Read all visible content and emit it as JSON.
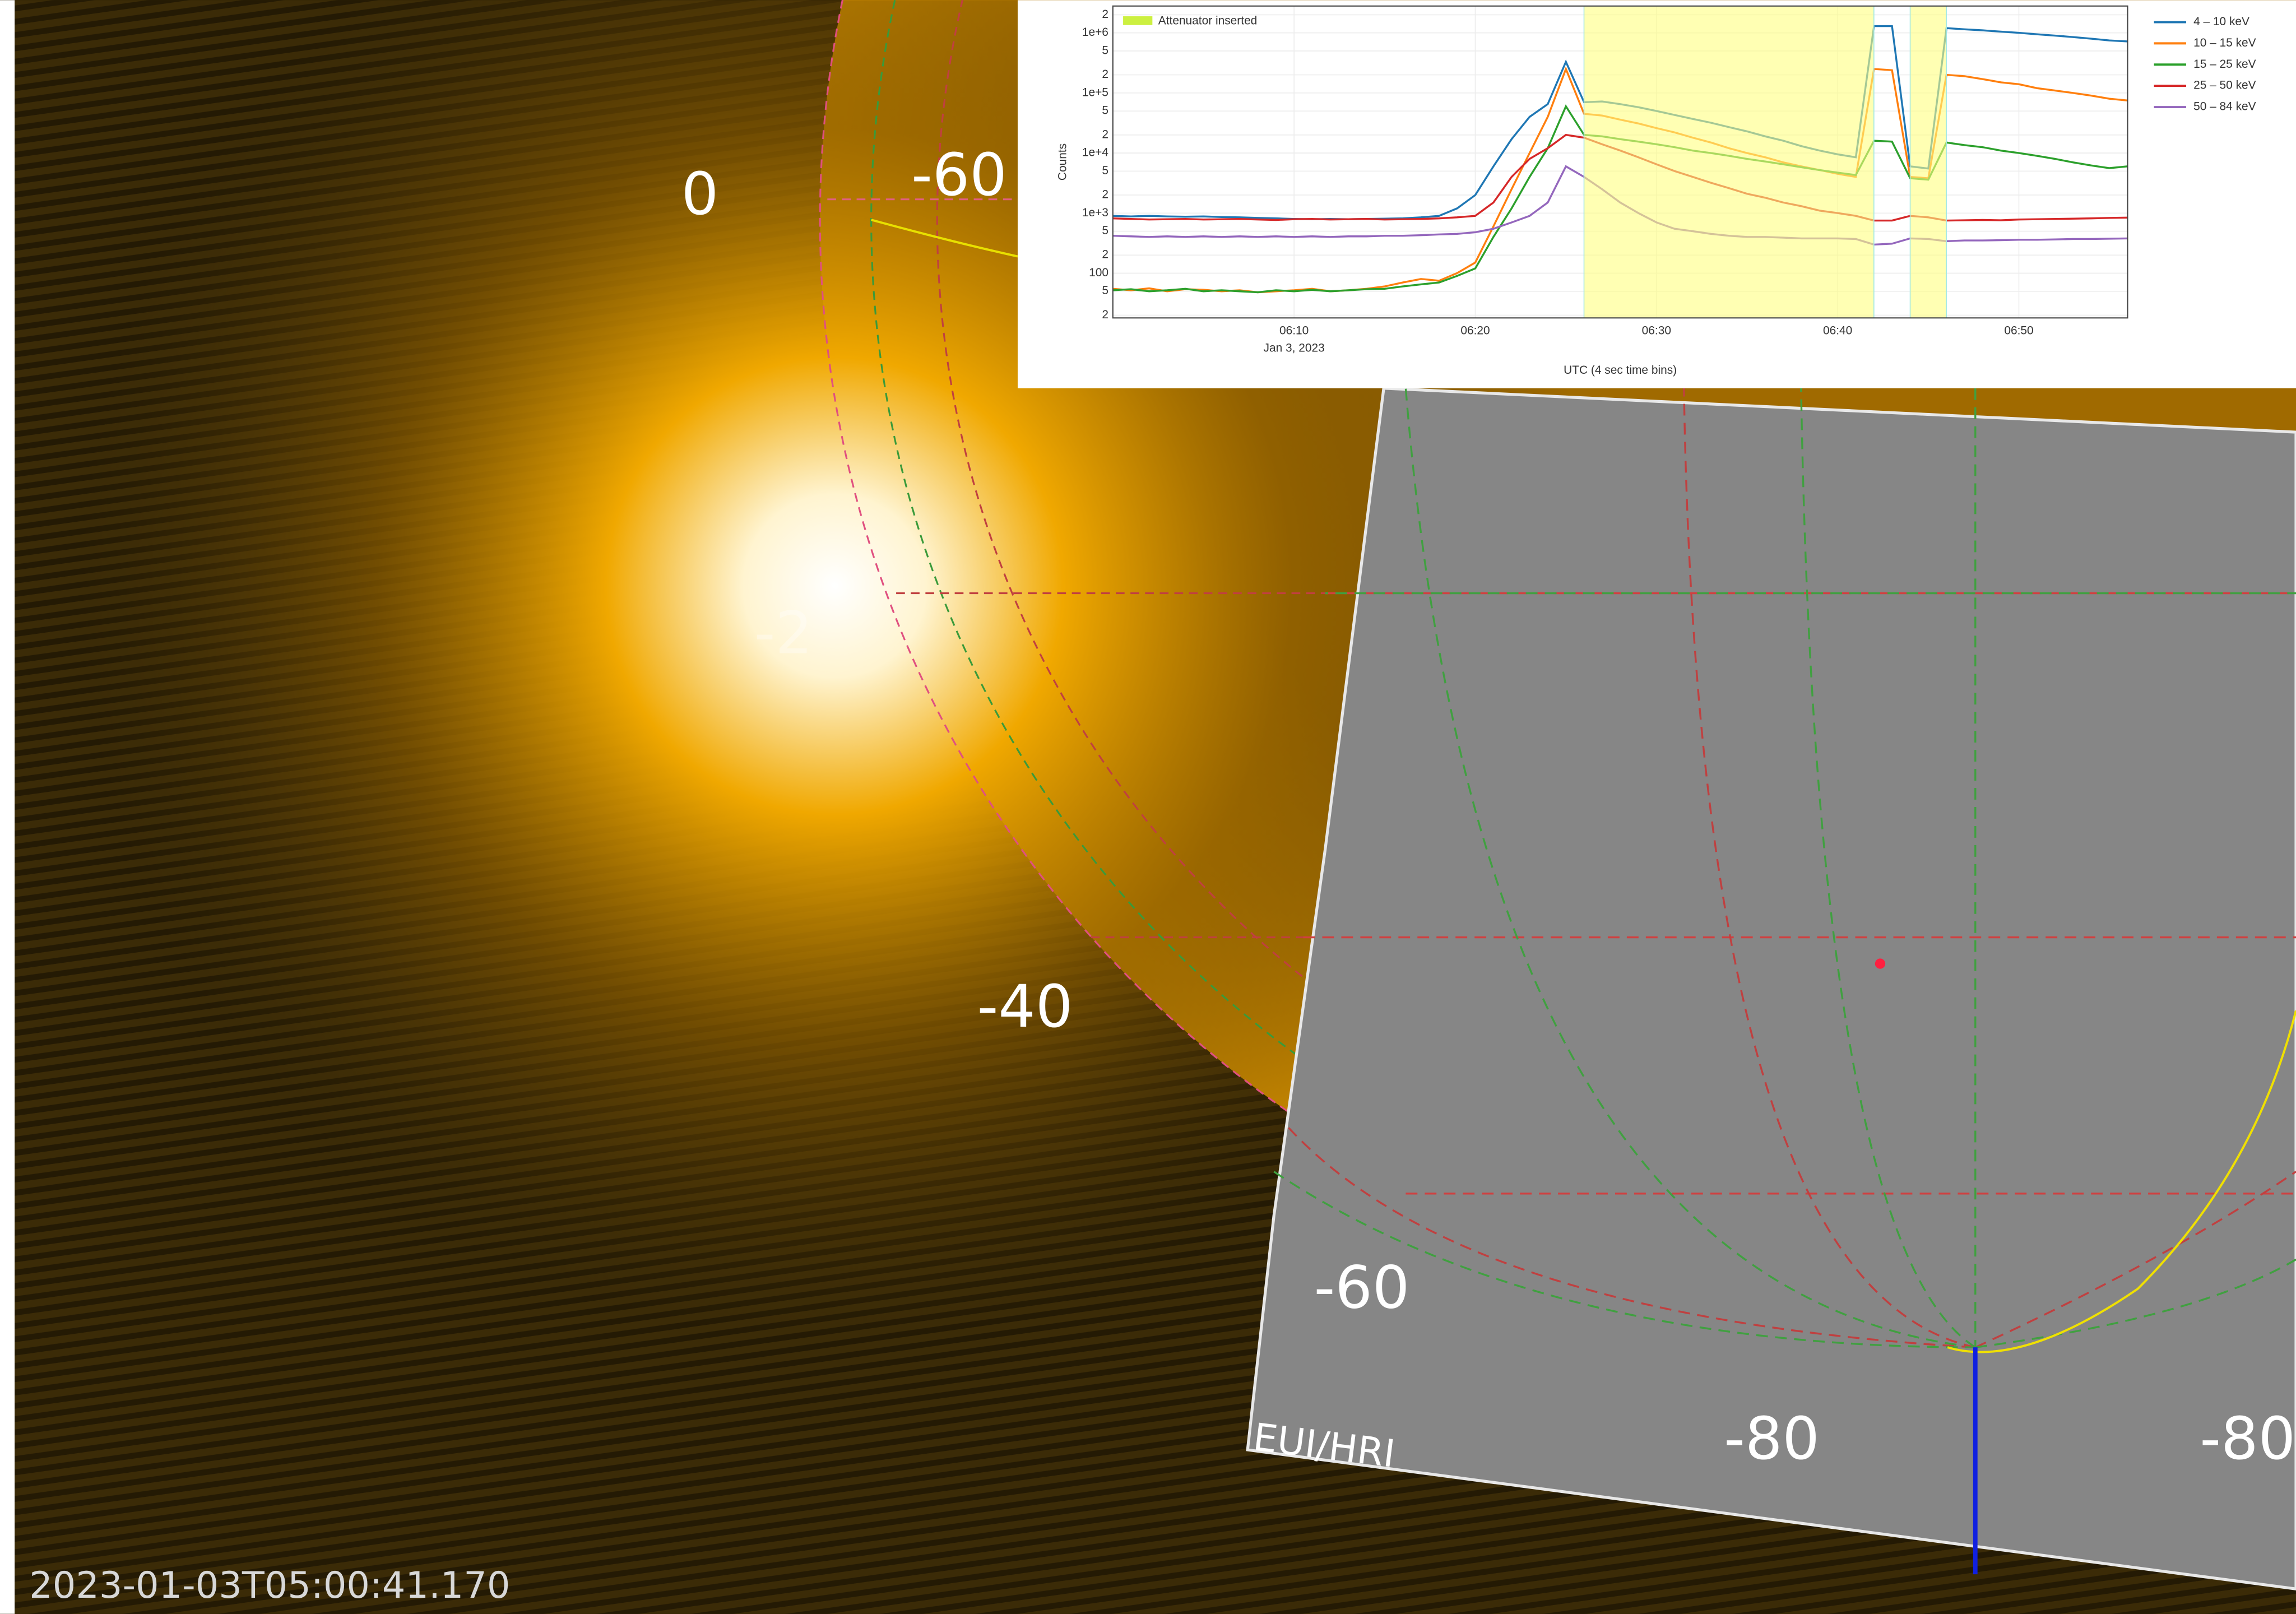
{
  "viewer": {
    "grid_labels": [
      "0",
      "-60",
      "-2",
      "-40",
      "-60",
      "-80",
      "-80"
    ],
    "instrument": "EUI/HRI",
    "timestamp": "2023-01-03T05:00:41.170"
  },
  "chart_data": {
    "type": "line",
    "x_label": "UTC (4 sec time bins)",
    "y_label": "Counts",
    "x_tick_sublabel": "Jan 3, 2023",
    "log_y": true,
    "grid": true,
    "legend_position": "right",
    "attenuator": {
      "label": "Attenuator inserted",
      "color": "#ffff80",
      "periods": [
        [
          "06:26",
          "06:42"
        ],
        [
          "06:44",
          "06:46"
        ]
      ]
    },
    "xlim": [
      "06:00",
      "06:56"
    ],
    "xticks": [
      "06:10",
      "06:20",
      "06:30",
      "06:40",
      "06:50"
    ],
    "ylim": [
      18,
      2800000
    ],
    "yticks": [
      {
        "value": 20,
        "label": "2"
      },
      {
        "value": 50,
        "label": "5"
      },
      100,
      {
        "value": 200,
        "label": "2"
      },
      {
        "value": 500,
        "label": "5"
      },
      {
        "value": 1000,
        "label": "1e+3"
      },
      {
        "value": 2000,
        "label": "2"
      },
      {
        "value": 5000,
        "label": "5"
      },
      {
        "value": 10000,
        "label": "1e+4"
      },
      {
        "value": 20000,
        "label": "2"
      },
      {
        "value": 50000,
        "label": "5"
      },
      {
        "value": 100000,
        "label": "1e+5"
      },
      {
        "value": 200000,
        "label": "2"
      },
      {
        "value": 500000,
        "label": "5"
      },
      {
        "value": 1000000,
        "label": "1e+6"
      },
      {
        "value": 2000000,
        "label": "2"
      }
    ],
    "x": [
      "06:00",
      "06:01",
      "06:02",
      "06:03",
      "06:04",
      "06:05",
      "06:06",
      "06:07",
      "06:08",
      "06:09",
      "06:10",
      "06:11",
      "06:12",
      "06:13",
      "06:14",
      "06:15",
      "06:16",
      "06:17",
      "06:18",
      "06:19",
      "06:20",
      "06:21",
      "06:22",
      "06:23",
      "06:24",
      "06:25",
      "06:26",
      "06:27",
      "06:28",
      "06:29",
      "06:30",
      "06:31",
      "06:32",
      "06:33",
      "06:34",
      "06:35",
      "06:36",
      "06:37",
      "06:38",
      "06:39",
      "06:40",
      "06:41",
      "06:42",
      "06:43",
      "06:44",
      "06:45",
      "06:46",
      "06:47",
      "06:48",
      "06:49",
      "06:50",
      "06:51",
      "06:52",
      "06:53",
      "06:54",
      "06:55",
      "06:56"
    ],
    "series": [
      {
        "name": "4 – 10 keV",
        "color": "#1f77b4",
        "values": [
          900,
          880,
          900,
          880,
          870,
          880,
          860,
          850,
          830,
          820,
          800,
          790,
          800,
          790,
          800,
          810,
          820,
          850,
          900,
          1200,
          2000,
          6000,
          17000,
          40000,
          65000,
          330000,
          70000,
          72000,
          65000,
          58000,
          50000,
          43000,
          37000,
          32000,
          27000,
          23000,
          19000,
          16000,
          13000,
          11000,
          9500,
          8500,
          1300000,
          1300000,
          6000,
          5500,
          1200000,
          1150000,
          1100000,
          1050000,
          1000000,
          950000,
          900000,
          850000,
          800000,
          750000,
          720000
        ]
      },
      {
        "name": "10 – 15 keV",
        "color": "#ff7f0e",
        "values": [
          55,
          52,
          56,
          50,
          54,
          53,
          50,
          52,
          48,
          50,
          52,
          55,
          50,
          52,
          55,
          60,
          70,
          80,
          75,
          100,
          150,
          600,
          2500,
          10000,
          40000,
          250000,
          45000,
          42000,
          36000,
          31000,
          26000,
          22000,
          18000,
          15000,
          12000,
          10000,
          8500,
          7000,
          6000,
          5200,
          4500,
          4000,
          250000,
          240000,
          4000,
          3800,
          200000,
          190000,
          170000,
          150000,
          140000,
          120000,
          110000,
          100000,
          90000,
          80000,
          75000
        ]
      },
      {
        "name": "15 – 25 keV",
        "color": "#2ca02c",
        "values": [
          52,
          54,
          50,
          52,
          55,
          50,
          52,
          50,
          48,
          52,
          50,
          53,
          50,
          52,
          54,
          55,
          60,
          65,
          70,
          90,
          120,
          400,
          1200,
          4000,
          12000,
          60000,
          20000,
          19000,
          17000,
          15500,
          14000,
          12500,
          11000,
          10000,
          9000,
          8000,
          7200,
          6500,
          5800,
          5200,
          4700,
          4300,
          16000,
          15500,
          3800,
          3600,
          15000,
          13500,
          12500,
          11000,
          10000,
          9000,
          8000,
          7000,
          6200,
          5600,
          6000
        ]
      },
      {
        "name": "25 – 50 keV",
        "color": "#d62728",
        "values": [
          820,
          800,
          780,
          790,
          800,
          780,
          790,
          800,
          780,
          770,
          790,
          800,
          780,
          790,
          800,
          780,
          790,
          800,
          820,
          850,
          900,
          1500,
          4000,
          8000,
          12000,
          20000,
          18000,
          14000,
          11000,
          8500,
          6500,
          5000,
          4000,
          3200,
          2600,
          2100,
          1800,
          1500,
          1300,
          1100,
          1000,
          900,
          750,
          750,
          900,
          850,
          750,
          760,
          770,
          760,
          780,
          790,
          800,
          810,
          820,
          830,
          840
        ]
      },
      {
        "name": "50 – 84 keV",
        "color": "#9467bd",
        "values": [
          420,
          410,
          400,
          410,
          400,
          410,
          400,
          410,
          400,
          410,
          400,
          410,
          400,
          410,
          410,
          420,
          420,
          430,
          440,
          450,
          480,
          550,
          700,
          900,
          1500,
          6000,
          4000,
          2500,
          1500,
          1000,
          700,
          550,
          500,
          450,
          420,
          400,
          400,
          390,
          380,
          380,
          380,
          370,
          300,
          310,
          380,
          370,
          340,
          350,
          350,
          355,
          360,
          360,
          365,
          370,
          370,
          375,
          380
        ]
      }
    ]
  }
}
